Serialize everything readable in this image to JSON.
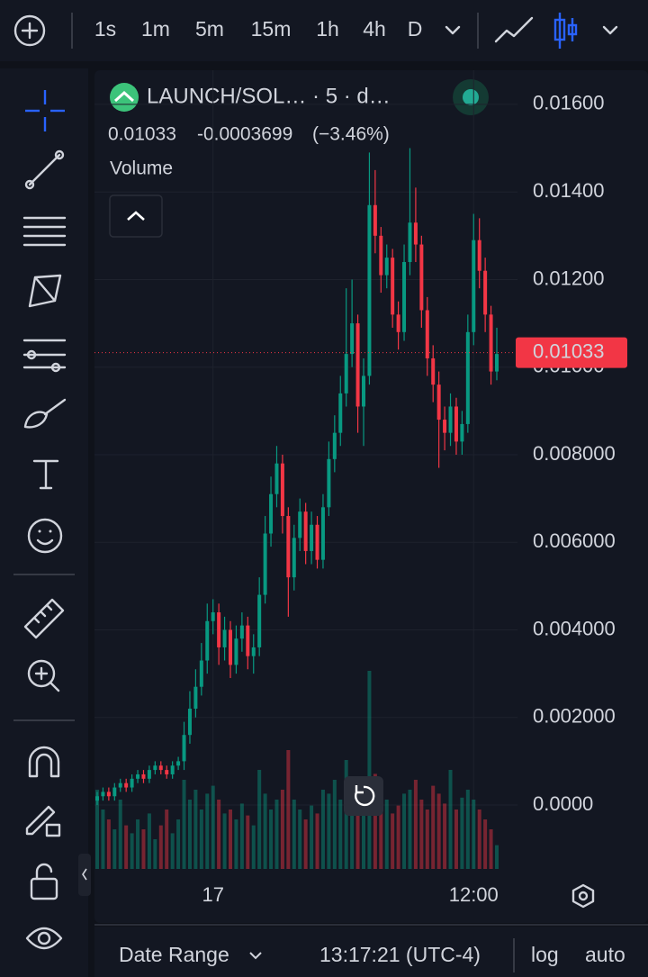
{
  "ui": {
    "intervals": [
      "1s",
      "1m",
      "5m",
      "15m",
      "1h",
      "4h",
      "D"
    ],
    "active_interval": "5m",
    "footer": {
      "date_range": "Date Range",
      "clock": "13:17:21 (UTC-4)",
      "log": "log",
      "auto": "auto"
    }
  },
  "chart_data": {
    "type": "candlestick",
    "title": "LAUNCH/SOL… · 5 · d…",
    "last_price": 0.01033,
    "change": -0.0003699,
    "change_pct": "(−3.46%)",
    "volume_label": "Volume",
    "up_color": "#089981",
    "down_color": "#f23645",
    "grid": true,
    "ylim": [
      -0.00146,
      0.01678
    ],
    "yticks": [
      {
        "value": 0.016,
        "label": "0.01600"
      },
      {
        "value": 0.014,
        "label": "0.01400"
      },
      {
        "value": 0.012,
        "label": "0.01200"
      },
      {
        "value": 0.01,
        "label": "0.01000"
      },
      {
        "value": 0.008,
        "label": "0.008000"
      },
      {
        "value": 0.006,
        "label": "0.006000"
      },
      {
        "value": 0.004,
        "label": "0.004000"
      },
      {
        "value": 0.002,
        "label": "0.002000"
      },
      {
        "value": 0,
        "label": "0.0000"
      }
    ],
    "xticks": [
      {
        "value": 20,
        "label": "17"
      },
      {
        "value": 65,
        "label": "12:00"
      }
    ],
    "open": [
      0.0001,
      0.0002,
      0.0003,
      0.0002,
      0.0004,
      0.0005,
      0.0004,
      0.0006,
      0.0007,
      0.0006,
      0.0008,
      0.0009,
      0.0008,
      0.0007,
      0.0009,
      0.001,
      0.0016,
      0.0022,
      0.0027,
      0.0033,
      0.0042,
      0.0044,
      0.0036,
      0.004,
      0.0032,
      0.0038,
      0.0041,
      0.0034,
      0.0036,
      0.0048,
      0.0062,
      0.0071,
      0.0078,
      0.0066,
      0.0052,
      0.0061,
      0.0067,
      0.0058,
      0.0064,
      0.0056,
      0.0068,
      0.0079,
      0.0085,
      0.0094,
      0.0103,
      0.011,
      0.0091,
      0.0098,
      0.0137,
      0.013,
      0.0121,
      0.0125,
      0.0112,
      0.0108,
      0.0124,
      0.0133,
      0.0128,
      0.0113,
      0.0102,
      0.0096,
      0.0088,
      0.0085,
      0.0091,
      0.0083,
      0.0087,
      0.0108,
      0.0129,
      0.0122,
      0.0112,
      0.0099
    ],
    "high": [
      0.0003,
      0.0004,
      0.0004,
      0.0005,
      0.0006,
      0.0006,
      0.0007,
      0.0008,
      0.0008,
      0.0009,
      0.001,
      0.001,
      0.0009,
      0.001,
      0.0011,
      0.0019,
      0.0026,
      0.0031,
      0.0037,
      0.0046,
      0.0047,
      0.0046,
      0.0043,
      0.0042,
      0.0041,
      0.0044,
      0.0043,
      0.0039,
      0.0052,
      0.0066,
      0.0075,
      0.0082,
      0.008,
      0.0068,
      0.0064,
      0.007,
      0.0069,
      0.0067,
      0.0066,
      0.0071,
      0.0083,
      0.0089,
      0.0098,
      0.0118,
      0.012,
      0.0112,
      0.0102,
      0.0149,
      0.0145,
      0.0132,
      0.0128,
      0.0127,
      0.0115,
      0.0128,
      0.015,
      0.0141,
      0.013,
      0.0116,
      0.0105,
      0.0099,
      0.0091,
      0.0094,
      0.0093,
      0.009,
      0.0112,
      0.0135,
      0.0134,
      0.0125,
      0.0114,
      0.0109
    ],
    "low": [
      0.0,
      0.0001,
      0.0001,
      0.0001,
      0.0003,
      0.0003,
      0.0003,
      0.0005,
      0.0005,
      0.0005,
      0.0007,
      0.0007,
      0.0006,
      0.0006,
      0.0008,
      0.0008,
      0.0014,
      0.002,
      0.0025,
      0.003,
      0.0039,
      0.0032,
      0.0033,
      0.0029,
      0.003,
      0.0035,
      0.0031,
      0.003,
      0.0034,
      0.0046,
      0.0059,
      0.0068,
      0.0062,
      0.0043,
      0.0049,
      0.0058,
      0.0055,
      0.0055,
      0.0054,
      0.0054,
      0.0066,
      0.0076,
      0.0082,
      0.0091,
      0.01,
      0.0085,
      0.0082,
      0.0096,
      0.0126,
      0.0117,
      0.0118,
      0.0109,
      0.0104,
      0.0106,
      0.0121,
      0.0124,
      0.0109,
      0.0098,
      0.0092,
      0.0077,
      0.0081,
      0.0082,
      0.008,
      0.008,
      0.0085,
      0.0105,
      0.0118,
      0.0108,
      0.0096,
      0.0097
    ],
    "close": [
      0.0002,
      0.0003,
      0.0002,
      0.0004,
      0.0005,
      0.0004,
      0.0006,
      0.0007,
      0.0006,
      0.0008,
      0.0009,
      0.0008,
      0.0007,
      0.0009,
      0.001,
      0.0016,
      0.0022,
      0.0027,
      0.0033,
      0.0042,
      0.0044,
      0.0036,
      0.004,
      0.0032,
      0.0038,
      0.0041,
      0.0034,
      0.0036,
      0.0048,
      0.0062,
      0.0071,
      0.0078,
      0.0066,
      0.0052,
      0.0061,
      0.0067,
      0.0058,
      0.0064,
      0.0056,
      0.0068,
      0.0079,
      0.0085,
      0.0094,
      0.0103,
      0.011,
      0.0091,
      0.0098,
      0.0137,
      0.013,
      0.0121,
      0.0125,
      0.0112,
      0.0108,
      0.0124,
      0.0133,
      0.0128,
      0.0113,
      0.0102,
      0.0096,
      0.0088,
      0.0085,
      0.0091,
      0.0083,
      0.0087,
      0.0108,
      0.0129,
      0.0122,
      0.0112,
      0.0099,
      0.0103
    ],
    "volume": [
      40,
      30,
      25,
      20,
      35,
      22,
      18,
      25,
      20,
      28,
      15,
      22,
      30,
      18,
      25,
      45,
      35,
      40,
      30,
      38,
      42,
      35,
      28,
      30,
      25,
      33,
      27,
      22,
      50,
      38,
      30,
      35,
      40,
      60,
      35,
      30,
      25,
      32,
      28,
      40,
      38,
      45,
      35,
      55,
      40,
      42,
      35,
      100,
      48,
      30,
      35,
      28,
      32,
      38,
      40,
      45,
      35,
      30,
      42,
      38,
      33,
      50,
      30,
      36,
      40,
      35,
      30,
      25,
      20,
      12
    ]
  }
}
